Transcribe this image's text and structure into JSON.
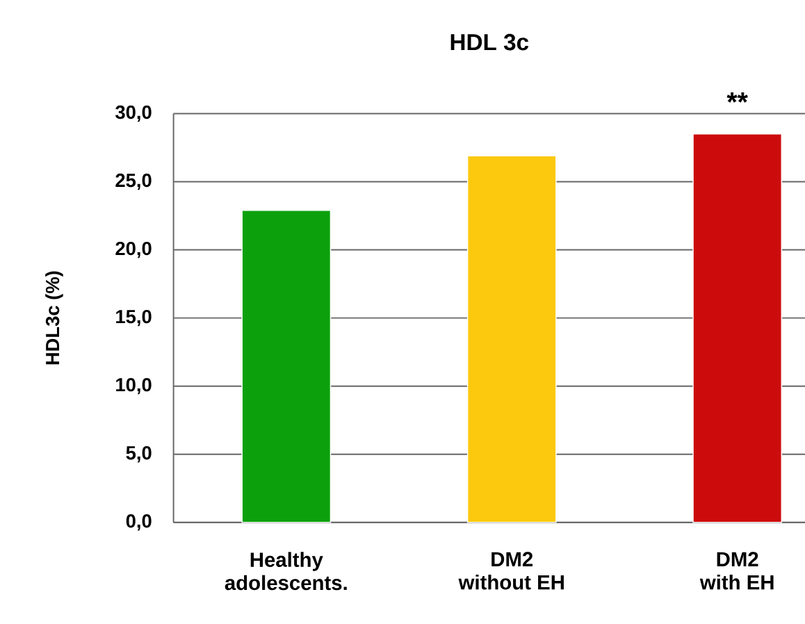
{
  "chart_data": {
    "type": "bar",
    "title": "HDL 3c",
    "ylabel": "HDL3c (%)",
    "categories": [
      "Healthy adolescents.",
      "DM2 without EH",
      "DM2 with EH"
    ],
    "values": [
      22.9,
      26.9,
      28.5
    ],
    "colors": [
      "#0ca10c",
      "#fcc90f",
      "#cc0c0c"
    ],
    "ylim": [
      0,
      30
    ],
    "yticks": [
      {
        "value": 0,
        "label": "0,0"
      },
      {
        "value": 5,
        "label": "5,0"
      },
      {
        "value": 10,
        "label": "10,0"
      },
      {
        "value": 15,
        "label": "15,0"
      },
      {
        "value": 20,
        "label": "20,0"
      },
      {
        "value": 25,
        "label": "25,0"
      },
      {
        "value": 30,
        "label": "30,0"
      }
    ],
    "grid": "y",
    "annotations": [
      {
        "text": "**",
        "x": "DM2 with EH",
        "y": 28.5
      }
    ]
  }
}
